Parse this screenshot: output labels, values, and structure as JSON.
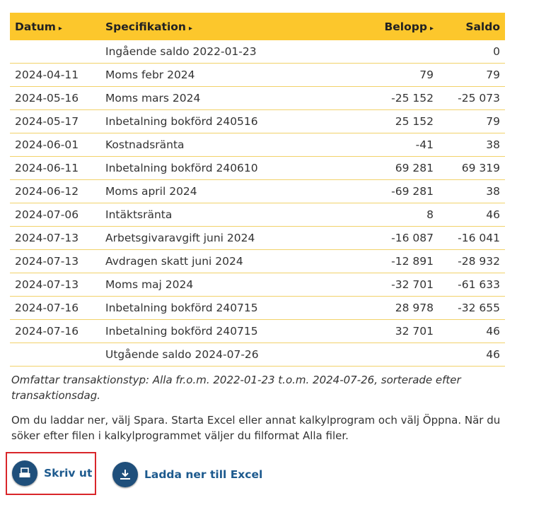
{
  "table": {
    "headers": [
      "Datum",
      "Specifikation",
      "Belopp",
      "Saldo"
    ],
    "rows": [
      {
        "spec": "Ingående saldo 2022-01-23",
        "balance": "0"
      },
      {
        "date": "2024-04-11",
        "spec": "Moms febr 2024",
        "amount": "79",
        "balance": "79"
      },
      {
        "date": "2024-05-16",
        "spec": "Moms mars 2024",
        "amount": "-25 152",
        "balance": "-25 073"
      },
      {
        "date": "2024-05-17",
        "spec": "Inbetalning bokförd 240516",
        "amount": "25 152",
        "balance": "79"
      },
      {
        "date": "2024-06-01",
        "spec": "Kostnadsränta",
        "amount": "-41",
        "balance": "38"
      },
      {
        "date": "2024-06-11",
        "spec": "Inbetalning bokförd 240610",
        "amount": "69 281",
        "balance": "69 319"
      },
      {
        "date": "2024-06-12",
        "spec": "Moms april 2024",
        "amount": "-69 281",
        "balance": "38"
      },
      {
        "date": "2024-07-06",
        "spec": "Intäktsränta",
        "amount": "8",
        "balance": "46"
      },
      {
        "date": "2024-07-13",
        "spec": "Arbetsgivaravgift juni 2024",
        "amount": "-16 087",
        "balance": "-16 041"
      },
      {
        "date": "2024-07-13",
        "spec": "Avdragen skatt juni 2024",
        "amount": "-12 891",
        "balance": "-28 932"
      },
      {
        "date": "2024-07-13",
        "spec": "Moms maj 2024",
        "amount": "-32 701",
        "balance": "-61 633"
      },
      {
        "date": "2024-07-16",
        "spec": "Inbetalning bokförd 240715",
        "amount": "28 978",
        "balance": "-32 655"
      },
      {
        "date": "2024-07-16",
        "spec": "Inbetalning bokförd 240715",
        "amount": "32 701",
        "balance": "46"
      },
      {
        "spec": "Utgående saldo 2024-07-26",
        "balance": "46"
      }
    ]
  },
  "note": "Omfattar transaktionstyp: Alla fr.o.m. 2022-01-23 t.o.m. 2024-07-26, sorterade efter transaktionsdag.",
  "info": "Om du laddar ner, välj Spara. Starta Excel eller annat kalkylprogram och välj Öppna. När du söker efter filen i kalkylprogrammet väljer du filformat Alla filer.",
  "buttons": {
    "print": "Skriv ut",
    "excel": "Ladda ner till Excel"
  }
}
